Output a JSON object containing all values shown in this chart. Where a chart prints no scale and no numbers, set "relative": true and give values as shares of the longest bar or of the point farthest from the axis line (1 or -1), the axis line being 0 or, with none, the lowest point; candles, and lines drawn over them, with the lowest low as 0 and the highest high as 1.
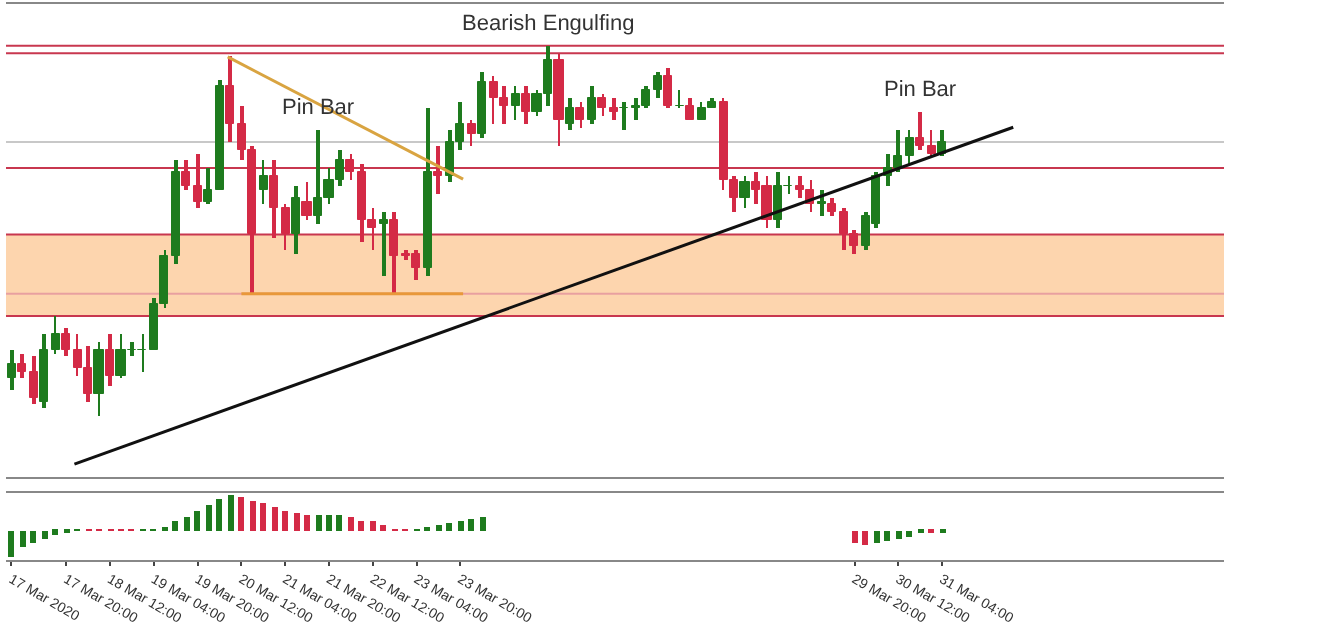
{
  "chart_data": [
    {
      "type": "candlestick",
      "relative": true,
      "x": [
        "2020-03-17T00:00",
        "2020-03-17T04:00",
        "2020-03-17T08:00",
        "2020-03-17T12:00",
        "2020-03-17T16:00",
        "2020-03-17T20:00",
        "2020-03-18T00:00",
        "2020-03-18T04:00",
        "2020-03-18T08:00",
        "2020-03-18T12:00",
        "2020-03-18T16:00",
        "2020-03-18T20:00",
        "2020-03-19T00:00",
        "2020-03-19T04:00",
        "2020-03-19T08:00",
        "2020-03-19T12:00",
        "2020-03-19T16:00",
        "2020-03-19T20:00",
        "2020-03-20T00:00",
        "2020-03-20T04:00",
        "2020-03-20T08:00",
        "2020-03-20T12:00",
        "2020-03-20T16:00",
        "2020-03-20T20:00",
        "2020-03-21T00:00",
        "2020-03-21T04:00",
        "2020-03-21T08:00",
        "2020-03-21T12:00",
        "2020-03-21T16:00",
        "2020-03-21T20:00",
        "2020-03-22T00:00",
        "2020-03-22T04:00",
        "2020-03-22T08:00",
        "2020-03-22T12:00",
        "2020-03-22T16:00",
        "2020-03-22T20:00",
        "2020-03-23T00:00",
        "2020-03-23T04:00",
        "2020-03-23T08:00",
        "2020-03-23T12:00",
        "2020-03-23T16:00",
        "2020-03-23T20:00",
        "2020-03-24T00:00",
        "2020-03-24T04:00",
        "2020-03-24T08:00",
        "2020-03-24T12:00",
        "2020-03-24T16:00",
        "2020-03-24T20:00",
        "2020-03-25T00:00",
        "2020-03-25T04:00",
        "2020-03-25T08:00",
        "2020-03-25T12:00",
        "2020-03-25T16:00",
        "2020-03-25T20:00",
        "2020-03-26T00:00",
        "2020-03-26T04:00",
        "2020-03-26T08:00",
        "2020-03-26T12:00",
        "2020-03-26T16:00",
        "2020-03-26T20:00",
        "2020-03-27T00:00",
        "2020-03-27T04:00",
        "2020-03-27T08:00",
        "2020-03-27T12:00",
        "2020-03-27T16:00",
        "2020-03-27T20:00",
        "2020-03-28T00:00",
        "2020-03-28T04:00",
        "2020-03-28T08:00",
        "2020-03-28T12:00",
        "2020-03-28T16:00",
        "2020-03-28T20:00",
        "2020-03-29T00:00",
        "2020-03-29T04:00",
        "2020-03-29T08:00",
        "2020-03-29T12:00",
        "2020-03-29T16:00",
        "2020-03-29T20:00",
        "2020-03-30T00:00",
        "2020-03-30T04:00",
        "2020-03-30T08:00",
        "2020-03-30T12:00",
        "2020-03-30T16:00",
        "2020-03-30T20:00",
        "2020-03-31T00:00",
        "2020-03-31T04:00"
      ],
      "ohlc": [
        [
          0.1,
          0.18,
          0.07,
          0.14
        ],
        [
          0.14,
          0.17,
          0.1,
          0.12
        ],
        [
          0.12,
          0.16,
          0.03,
          0.05
        ],
        [
          0.04,
          0.22,
          0.02,
          0.18
        ],
        [
          0.18,
          0.27,
          0.17,
          0.22
        ],
        [
          0.22,
          0.24,
          0.16,
          0.18
        ],
        [
          0.18,
          0.22,
          0.11,
          0.13
        ],
        [
          0.13,
          0.19,
          0.04,
          0.06
        ],
        [
          0.06,
          0.2,
          0.0,
          0.18
        ],
        [
          0.18,
          0.22,
          0.08,
          0.11
        ],
        [
          0.11,
          0.22,
          0.1,
          0.18
        ],
        [
          0.18,
          0.2,
          0.16,
          0.18
        ],
        [
          0.18,
          0.22,
          0.12,
          0.18
        ],
        [
          0.18,
          0.32,
          0.18,
          0.3
        ],
        [
          0.3,
          0.45,
          0.29,
          0.43
        ],
        [
          0.43,
          0.69,
          0.41,
          0.66
        ],
        [
          0.66,
          0.69,
          0.61,
          0.62
        ],
        [
          0.62,
          0.71,
          0.56,
          0.58
        ],
        [
          0.58,
          0.67,
          0.57,
          0.61
        ],
        [
          0.61,
          0.91,
          0.61,
          0.89
        ],
        [
          0.89,
          0.97,
          0.74,
          0.79
        ],
        [
          0.79,
          0.84,
          0.69,
          0.72
        ],
        [
          0.72,
          0.73,
          0.33,
          0.49
        ],
        [
          0.61,
          0.69,
          0.57,
          0.65
        ],
        [
          0.65,
          0.69,
          0.48,
          0.56
        ],
        [
          0.56,
          0.57,
          0.45,
          0.49
        ],
        [
          0.49,
          0.62,
          0.44,
          0.59
        ],
        [
          0.58,
          0.63,
          0.53,
          0.54
        ],
        [
          0.54,
          0.77,
          0.52,
          0.59
        ],
        [
          0.59,
          0.67,
          0.57,
          0.64
        ],
        [
          0.64,
          0.72,
          0.62,
          0.69
        ],
        [
          0.69,
          0.71,
          0.64,
          0.66
        ],
        [
          0.66,
          0.68,
          0.47,
          0.53
        ],
        [
          0.53,
          0.56,
          0.45,
          0.51
        ],
        [
          0.52,
          0.55,
          0.38,
          0.53
        ],
        [
          0.53,
          0.55,
          0.33,
          0.43
        ],
        [
          0.44,
          0.45,
          0.42,
          0.43
        ],
        [
          0.44,
          0.45,
          0.37,
          0.4
        ],
        [
          0.4,
          0.83,
          0.38,
          0.66
        ],
        [
          0.66,
          0.73,
          0.6,
          0.65
        ],
        [
          0.65,
          0.77,
          0.63,
          0.74
        ],
        [
          0.74,
          0.85,
          0.72,
          0.79
        ],
        [
          0.79,
          0.8,
          0.73,
          0.76
        ],
        [
          0.76,
          0.93,
          0.75,
          0.9
        ],
        [
          0.9,
          0.92,
          0.79,
          0.86
        ],
        [
          0.86,
          0.89,
          0.79,
          0.84
        ],
        [
          0.84,
          0.89,
          0.8,
          0.87
        ],
        [
          0.87,
          0.89,
          0.79,
          0.82
        ],
        [
          0.82,
          0.88,
          0.81,
          0.87
        ],
        [
          0.87,
          1.0,
          0.84,
          0.96
        ],
        [
          0.96,
          0.98,
          0.73,
          0.8
        ],
        [
          0.79,
          0.86,
          0.77,
          0.83
        ],
        [
          0.83,
          0.85,
          0.78,
          0.8
        ],
        [
          0.8,
          0.89,
          0.79,
          0.86
        ],
        [
          0.86,
          0.87,
          0.81,
          0.83
        ],
        [
          0.83,
          0.86,
          0.8,
          0.82
        ],
        [
          0.83,
          0.85,
          0.77,
          0.83
        ],
        [
          0.83,
          0.86,
          0.8,
          0.84
        ],
        [
          0.84,
          0.89,
          0.83,
          0.88
        ],
        [
          0.88,
          0.93,
          0.86,
          0.92
        ],
        [
          0.92,
          0.94,
          0.83,
          0.84
        ],
        [
          0.84,
          0.88,
          0.83,
          0.84
        ],
        [
          0.84,
          0.86,
          0.8,
          0.8
        ],
        [
          0.8,
          0.85,
          0.8,
          0.83
        ],
        [
          0.83,
          0.86,
          0.83,
          0.85
        ],
        [
          0.85,
          0.86,
          0.61,
          0.64
        ],
        [
          0.64,
          0.65,
          0.55,
          0.59
        ],
        [
          0.59,
          0.65,
          0.56,
          0.63
        ],
        [
          0.63,
          0.66,
          0.57,
          0.61
        ],
        [
          0.62,
          0.65,
          0.51,
          0.53
        ],
        [
          0.53,
          0.66,
          0.51,
          0.62
        ],
        [
          0.62,
          0.65,
          0.6,
          0.62
        ],
        [
          0.62,
          0.65,
          0.59,
          0.61
        ],
        [
          0.61,
          0.64,
          0.55,
          0.57
        ],
        [
          0.57,
          0.61,
          0.54,
          0.58
        ],
        [
          0.57,
          0.59,
          0.54,
          0.55
        ],
        [
          0.55,
          0.56,
          0.45,
          0.49
        ],
        [
          0.49,
          0.5,
          0.44,
          0.46
        ],
        [
          0.46,
          0.55,
          0.45,
          0.54
        ],
        [
          0.52,
          0.66,
          0.51,
          0.65
        ],
        [
          0.65,
          0.71,
          0.62,
          0.67
        ],
        [
          0.67,
          0.77,
          0.66,
          0.7
        ],
        [
          0.7,
          0.77,
          0.68,
          0.75
        ],
        [
          0.75,
          0.82,
          0.72,
          0.73
        ],
        [
          0.73,
          0.77,
          0.7,
          0.71
        ],
        [
          0.71,
          0.77,
          0.7,
          0.74
        ]
      ],
      "xlim": [
        "2020-03-16T22:00",
        "2020-04-04T11:00"
      ],
      "series": [
        {
          "type": "line",
          "color": "#111111",
          "x": [
            "2020-03-17T23:00",
            "2020-04-01T06:00"
          ],
          "values": [
            -0.13,
            0.78
          ]
        },
        {
          "type": "line",
          "color": "#d9a441",
          "x": [
            "2020-03-20T07:00",
            "2020-03-23T21:00"
          ],
          "values": [
            0.97,
            0.64
          ]
        },
        {
          "type": "line",
          "color": "#e8983a",
          "x": [
            "2020-03-20T12:00",
            "2020-03-23T21:00"
          ],
          "values": [
            0.33,
            0.33
          ]
        }
      ],
      "ref_lines": [
        {
          "axis": "y",
          "value": 1.0,
          "color": "#c8374f"
        },
        {
          "axis": "y",
          "value": 0.98,
          "color": "#c8374f"
        },
        {
          "axis": "y",
          "value": 0.74,
          "color": "#c8c8c8"
        },
        {
          "axis": "y",
          "value": 0.67,
          "color": "#c8374f"
        },
        {
          "axis": "y",
          "value": 0.49,
          "color": "#c8374f"
        },
        {
          "axis": "y",
          "value": 0.33,
          "color": "#e8a0a0"
        },
        {
          "axis": "y",
          "value": 0.27,
          "color": "#c8374f"
        }
      ],
      "bands": [
        {
          "axis": "y",
          "from": 0.27,
          "to": 0.49,
          "color": "#fdd5ae"
        }
      ],
      "annotations": [
        {
          "text": "Pin Bar",
          "x": "2020-03-21T16:00",
          "y": 0.77
        },
        {
          "text": "Bearish Engulfing",
          "x": "2020-03-25T04:00",
          "y": 1.0
        },
        {
          "text": "Pin Bar",
          "x": "2020-03-30T20:00",
          "y": 0.82
        }
      ]
    },
    {
      "type": "bar",
      "relative": true,
      "x": [
        "2020-03-17T00:00",
        "2020-03-17T04:00",
        "2020-03-17T08:00",
        "2020-03-17T12:00",
        "2020-03-17T16:00",
        "2020-03-17T20:00",
        "2020-03-18T00:00",
        "2020-03-18T04:00",
        "2020-03-18T08:00",
        "2020-03-18T12:00",
        "2020-03-18T16:00",
        "2020-03-18T20:00",
        "2020-03-19T00:00",
        "2020-03-19T04:00",
        "2020-03-19T08:00",
        "2020-03-19T12:00",
        "2020-03-19T16:00",
        "2020-03-19T20:00",
        "2020-03-20T00:00",
        "2020-03-20T04:00",
        "2020-03-20T08:00",
        "2020-03-20T12:00",
        "2020-03-20T16:00",
        "2020-03-20T20:00",
        "2020-03-21T00:00",
        "2020-03-21T04:00",
        "2020-03-21T08:00",
        "2020-03-21T12:00",
        "2020-03-21T16:00",
        "2020-03-21T20:00",
        "2020-03-22T00:00",
        "2020-03-22T04:00",
        "2020-03-22T08:00",
        "2020-03-22T12:00",
        "2020-03-22T16:00",
        "2020-03-22T20:00",
        "2020-03-23T00:00",
        "2020-03-23T04:00",
        "2020-03-23T08:00",
        "2020-03-23T12:00",
        "2020-03-23T16:00",
        "2020-03-23T20:00",
        "2020-03-24T00:00",
        "2020-03-24T04:00",
        "2020-03-24T08:00",
        "2020-03-24T12:00",
        "2020-03-24T16:00",
        "2020-03-24T20:00",
        "2020-03-25T00:00",
        "2020-03-25T04:00",
        "2020-03-25T08:00",
        "2020-03-25T12:00",
        "2020-03-25T16:00",
        "2020-03-25T20:00",
        "2020-03-26T00:00",
        "2020-03-26T04:00",
        "2020-03-26T08:00",
        "2020-03-26T12:00",
        "2020-03-26T16:00",
        "2020-03-26T20:00",
        "2020-03-27T00:00",
        "2020-03-27T04:00",
        "2020-03-27T08:00",
        "2020-03-27T12:00",
        "2020-03-27T16:00",
        "2020-03-27T20:00",
        "2020-03-28T00:00",
        "2020-03-28T04:00",
        "2020-03-28T08:00",
        "2020-03-28T12:00",
        "2020-03-28T16:00",
        "2020-03-28T20:00",
        "2020-03-29T00:00",
        "2020-03-29T04:00",
        "2020-03-29T08:00",
        "2020-03-29T12:00",
        "2020-03-29T16:00",
        "2020-03-29T20:00",
        "2020-03-30T00:00",
        "2020-03-30T04:00",
        "2020-03-30T08:00",
        "2020-03-30T12:00",
        "2020-03-30T16:00",
        "2020-03-30T20:00",
        "2020-03-31T00:00",
        "2020-03-31T04:00"
      ],
      "values": [
        -0.75,
        -0.45,
        -0.35,
        -0.2,
        -0.1,
        -0.03,
        0.02,
        0.02,
        0.02,
        0.02,
        0.02,
        0.02,
        0.03,
        0.05,
        0.1,
        0.25,
        0.4,
        0.55,
        0.7,
        0.9,
        1.0,
        0.95,
        0.85,
        0.75,
        0.65,
        0.55,
        0.5,
        0.45,
        0.45,
        0.45,
        0.45,
        0.4,
        0.3,
        0.25,
        0.15,
        0.05,
        0.02,
        0.05,
        0.1,
        0.15,
        0.2,
        0.3,
        0.35,
        0.4,
        null,
        null,
        null,
        null,
        null,
        null,
        null,
        null,
        null,
        null,
        null,
        null,
        null,
        null,
        null,
        null,
        null,
        null,
        null,
        null,
        null,
        null,
        null,
        null,
        null,
        null,
        null,
        null,
        null,
        null,
        null,
        null,
        null,
        -0.35,
        -0.4,
        -0.35,
        -0.3,
        -0.25,
        -0.15,
        -0.08,
        -0.03,
        -0.02
      ],
      "colors": [
        "#1e7b1e",
        "#1e7b1e",
        "#1e7b1e",
        "#1e7b1e",
        "#1e7b1e",
        "#1e7b1e",
        "#1e7b1e",
        "#d42a46",
        "#d42a46",
        "#d42a46",
        "#d42a46",
        "#d42a46",
        "#1e7b1e",
        "#1e7b1e",
        "#1e7b1e",
        "#1e7b1e",
        "#1e7b1e",
        "#1e7b1e",
        "#1e7b1e",
        "#1e7b1e",
        "#1e7b1e",
        "#d42a46",
        "#d42a46",
        "#d42a46",
        "#d42a46",
        "#d42a46",
        "#d42a46",
        "#d42a46",
        "#1e7b1e",
        "#1e7b1e",
        "#1e7b1e",
        "#d42a46",
        "#d42a46",
        "#d42a46",
        "#d42a46",
        "#d42a46",
        "#d42a46",
        "#1e7b1e",
        "#1e7b1e",
        "#1e7b1e",
        "#1e7b1e",
        "#1e7b1e",
        "#1e7b1e",
        "#1e7b1e",
        null,
        null,
        null,
        null,
        null,
        null,
        null,
        null,
        null,
        null,
        null,
        null,
        null,
        null,
        null,
        null,
        null,
        null,
        null,
        null,
        null,
        null,
        null,
        null,
        null,
        null,
        null,
        null,
        null,
        null,
        null,
        null,
        null,
        "#d42a46",
        "#d42a46",
        "#1e7b1e",
        "#1e7b1e",
        "#1e7b1e",
        "#1e7b1e",
        "#1e7b1e",
        "#d42a46",
        "#1e7b1e"
      ],
      "xlim": [
        "2020-03-16T22:00",
        "2020-04-04T11:00"
      ],
      "xticks": [
        {
          "value": "2020-03-17T00:00",
          "label": "17 Mar 2020"
        },
        {
          "value": "2020-03-17T20:00",
          "label": "17 Mar 20:00"
        },
        {
          "value": "2020-03-18T12:00",
          "label": "18 Mar 12:00"
        },
        {
          "value": "2020-03-19T04:00",
          "label": "19 Mar 04:00"
        },
        {
          "value": "2020-03-19T20:00",
          "label": "19 Mar 20:00"
        },
        {
          "value": "2020-03-20T12:00",
          "label": "20 Mar 12:00"
        },
        {
          "value": "2020-03-21T04:00",
          "label": "21 Mar 04:00"
        },
        {
          "value": "2020-03-21T20:00",
          "label": "21 Mar 20:00"
        },
        {
          "value": "2020-03-22T12:00",
          "label": "22 Mar 12:00"
        },
        {
          "value": "2020-03-23T04:00",
          "label": "23 Mar 04:00"
        },
        {
          "value": "2020-03-23T20:00",
          "label": "23 Mar 20:00"
        },
        {
          "value": "2020-03-29T20:00",
          "label": "29 Mar 20:00"
        },
        {
          "value": "2020-03-30T12:00",
          "label": "30 Mar 12:00"
        },
        {
          "value": "2020-03-31T04:00",
          "label": "31 Mar 04:00"
        }
      ]
    }
  ]
}
